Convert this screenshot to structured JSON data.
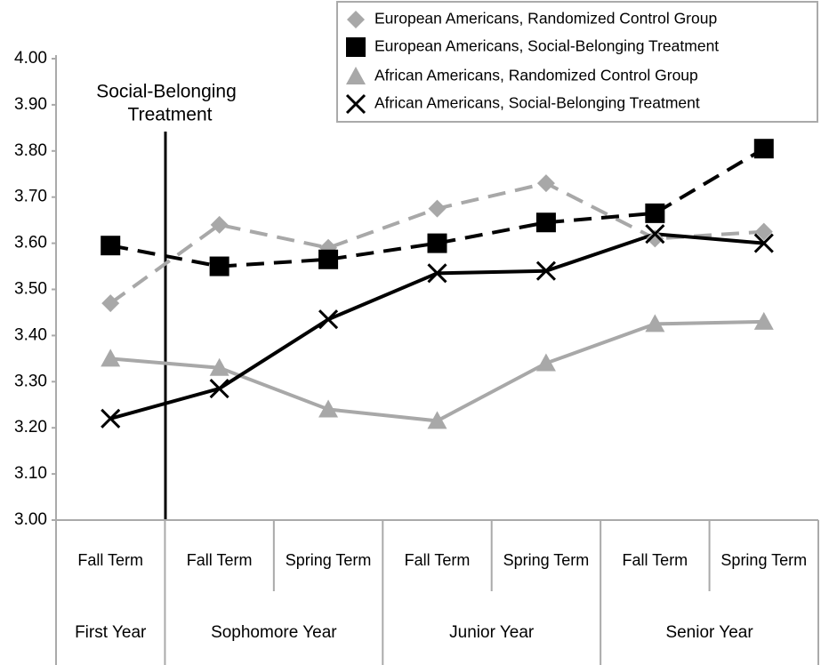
{
  "chart_data": {
    "type": "line",
    "annotation": [
      "Social-Belonging",
      "Treatment"
    ],
    "categories": [
      "Fall Term",
      "Fall Term",
      "Spring Term",
      "Fall Term",
      "Spring Term",
      "Fall Term",
      "Spring Term"
    ],
    "group_labels": [
      "First Year",
      "Sophomore Year",
      null,
      "Junior Year",
      null,
      "Senior Year",
      null
    ],
    "series": [
      {
        "name": "European Americans, Randomized Control Group",
        "color": "#a8a8a8",
        "marker": "diamond",
        "dashed": true,
        "values": [
          3.47,
          3.64,
          3.59,
          3.675,
          3.73,
          3.61,
          3.625
        ]
      },
      {
        "name": "European Americans, Social-Belonging Treatment",
        "color": "#000000",
        "marker": "square",
        "dashed": true,
        "values": [
          3.595,
          3.55,
          3.565,
          3.6,
          3.645,
          3.665,
          3.805
        ]
      },
      {
        "name": "African Americans, Randomized Control Group",
        "color": "#a8a8a8",
        "marker": "triangle",
        "dashed": false,
        "values": [
          3.35,
          3.33,
          3.24,
          3.215,
          3.34,
          3.425,
          3.43
        ]
      },
      {
        "name": "African Americans, Social-Belonging Treatment",
        "color": "#000000",
        "marker": "x",
        "dashed": false,
        "values": [
          3.22,
          3.285,
          3.435,
          3.535,
          3.54,
          3.62,
          3.6
        ]
      }
    ],
    "ylim": [
      3.0,
      4.0
    ],
    "yticks": [
      {
        "value": 3.0,
        "label": "3.00"
      },
      {
        "value": 3.1,
        "label": "3.10"
      },
      {
        "value": 3.2,
        "label": "3.20"
      },
      {
        "value": 3.3,
        "label": "3.30"
      },
      {
        "value": 3.4,
        "label": "3.40"
      },
      {
        "value": 3.5,
        "label": "3.50"
      },
      {
        "value": 3.6,
        "label": "3.60"
      },
      {
        "value": 3.7,
        "label": "3.70"
      },
      {
        "value": 3.8,
        "label": "3.80"
      },
      {
        "value": 3.9,
        "label": "3.90"
      },
      {
        "value": 4.0,
        "label": "4.00"
      }
    ],
    "grid": false
  }
}
